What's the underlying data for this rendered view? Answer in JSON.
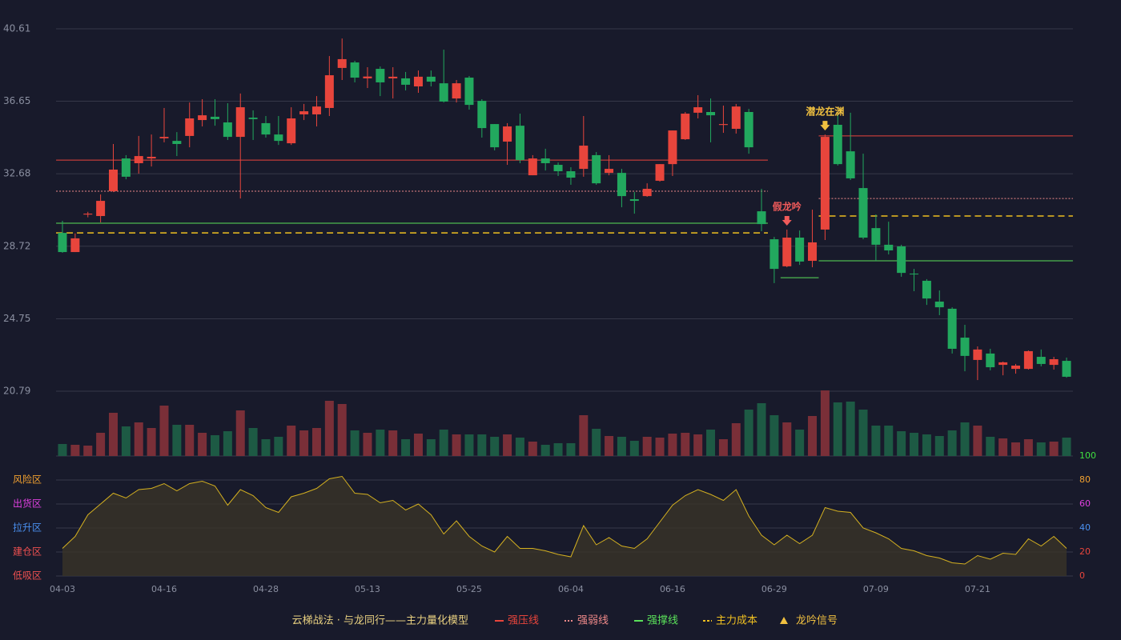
{
  "chart_data": {
    "type": "candlestick",
    "categories": [
      "04-03",
      null,
      null,
      null,
      null,
      null,
      null,
      null,
      "04-16",
      null,
      null,
      null,
      null,
      null,
      null,
      null,
      "04-28",
      null,
      null,
      null,
      null,
      null,
      null,
      null,
      "05-13",
      null,
      null,
      null,
      null,
      null,
      null,
      null,
      "05-25",
      null,
      null,
      null,
      null,
      null,
      null,
      null,
      "06-04",
      null,
      null,
      null,
      null,
      null,
      null,
      null,
      "06-16",
      null,
      null,
      null,
      null,
      null,
      null,
      null,
      "06-29",
      null,
      null,
      null,
      null,
      null,
      null,
      null,
      "07-09",
      null,
      null,
      null,
      null,
      null,
      null,
      null,
      "07-21",
      null,
      null,
      null,
      null,
      null,
      null,
      null
    ],
    "open": [
      29.45,
      28.4,
      30.45,
      30.37,
      31.73,
      33.52,
      33.26,
      33.52,
      34.62,
      34.48,
      34.75,
      35.62,
      35.8,
      35.49,
      34.7,
      35.75,
      35.45,
      34.83,
      34.35,
      35.93,
      35.93,
      36.28,
      38.47,
      38.77,
      37.9,
      38.42,
      37.9,
      37.9,
      37.46,
      37.99,
      37.63,
      36.8,
      37.94,
      36.67,
      35.4,
      34.44,
      35.31,
      32.6,
      33.52,
      33.17,
      32.82,
      32.95,
      33.7,
      32.73,
      32.73,
      31.29,
      31.46,
      32.3,
      33.21,
      34.57,
      36.02,
      36.06,
      35.35,
      35.14,
      36.06,
      30.63,
      29.1,
      27.62,
      29.19,
      27.92,
      29.63,
      35.36,
      33.91,
      31.9,
      29.71,
      28.8,
      28.71,
      27.22,
      26.83,
      25.69,
      25.3,
      23.72,
      22.5,
      22.85,
      22.23,
      22.01,
      22.01,
      22.67,
      22.23,
      22.45
    ],
    "high": [
      30.11,
      29.42,
      30.6,
      31.55,
      34.31,
      33.7,
      34.75,
      34.83,
      36.28,
      34.96,
      36.58,
      36.76,
      36.76,
      36.54,
      37.07,
      36.15,
      35.84,
      35.84,
      36.32,
      36.5,
      36.93,
      39.12,
      40.08,
      38.86,
      38.51,
      38.55,
      38.51,
      38.25,
      38.33,
      38.33,
      39.47,
      37.81,
      38.03,
      36.76,
      35.4,
      35.45,
      35.97,
      33.7,
      34.05,
      33.3,
      33.04,
      35.84,
      33.87,
      33.7,
      32.95,
      31.68,
      32.16,
      33.21,
      35.05,
      36.06,
      36.98,
      36.8,
      36.41,
      36.5,
      36.23,
      31.86,
      29.23,
      29.63,
      29.58,
      30.72,
      34.83,
      35.93,
      36.02,
      33.78,
      30.46,
      30.06,
      28.8,
      27.48,
      26.92,
      26.3,
      25.38,
      24.42,
      23.24,
      23.11,
      22.41,
      22.28,
      23.02,
      23.07,
      22.67,
      22.63
    ],
    "low": [
      28.36,
      28.4,
      30.3,
      30.02,
      31.68,
      32.38,
      32.69,
      33.08,
      34.4,
      33.65,
      34.13,
      35.27,
      35.31,
      34.53,
      31.33,
      34.53,
      34.66,
      34.26,
      34.26,
      35.62,
      35.27,
      35.84,
      37.81,
      37.68,
      37.37,
      36.93,
      36.8,
      37.24,
      37.11,
      37.46,
      36.58,
      36.58,
      36.19,
      34.66,
      33.96,
      33.17,
      33.26,
      32.6,
      32.86,
      32.56,
      32.08,
      32.52,
      32.08,
      32.6,
      30.85,
      30.5,
      31.42,
      32.25,
      32.56,
      34.53,
      35.71,
      34.4,
      34.92,
      34.88,
      33.78,
      29.54,
      26.7,
      27.57,
      27.7,
      27.57,
      29.06,
      33.13,
      32.34,
      29.1,
      27.92,
      28.27,
      27.05,
      26.26,
      25.51,
      24.95,
      22.85,
      21.88,
      21.4,
      21.93,
      21.66,
      21.75,
      21.97,
      22.15,
      21.97,
      21.53
    ],
    "close": [
      28.4,
      29.15,
      30.5,
      31.2,
      32.91,
      32.52,
      33.65,
      33.61,
      34.7,
      34.31,
      35.71,
      35.88,
      35.67,
      34.7,
      36.32,
      35.67,
      34.83,
      34.48,
      35.71,
      36.1,
      36.36,
      38.07,
      38.95,
      37.94,
      38.0,
      37.68,
      37.99,
      37.55,
      37.99,
      37.72,
      36.63,
      37.63,
      36.45,
      35.18,
      34.13,
      35.27,
      33.43,
      33.52,
      33.26,
      32.82,
      32.47,
      34.22,
      32.16,
      32.95,
      31.46,
      31.2,
      31.86,
      33.21,
      35.05,
      35.97,
      36.32,
      35.88,
      35.4,
      36.36,
      34.13,
      29.93,
      27.48,
      29.19,
      27.88,
      28.93,
      34.7,
      33.21,
      32.43,
      29.19,
      28.8,
      28.49,
      27.26,
      27.18,
      25.86,
      25.38,
      23.11,
      22.72,
      23.07,
      22.1,
      22.37,
      22.19,
      22.98,
      22.28,
      22.54,
      21.58
    ],
    "up_color": "#e8453c",
    "down_color": "#22a85e",
    "ylim": [
      20.79,
      40.61
    ],
    "yticks": [
      20.79,
      24.75,
      28.72,
      32.68,
      36.65,
      40.61
    ],
    "levels": [
      {
        "name": "强压线",
        "color": "#e8453c",
        "style": "solid",
        "values": [
          33.43,
          33.43,
          33.43,
          33.43,
          33.43,
          33.43,
          33.43,
          33.43,
          33.43,
          33.43,
          33.43,
          33.43,
          33.43,
          33.43,
          33.43,
          33.43,
          33.43,
          33.43,
          33.43,
          33.43,
          33.43,
          33.43,
          33.43,
          33.43,
          33.43,
          33.43,
          33.43,
          33.43,
          33.43,
          33.43,
          33.43,
          33.43,
          33.43,
          33.43,
          33.43,
          33.43,
          33.43,
          33.43,
          33.43,
          33.43,
          33.43,
          33.43,
          33.43,
          33.43,
          33.43,
          33.43,
          33.43,
          33.43,
          33.43,
          33.43,
          33.43,
          33.43,
          33.43,
          33.43,
          33.43,
          33.43,
          null,
          null,
          null,
          null,
          34.75,
          34.75,
          34.75,
          34.75,
          34.75,
          34.75,
          34.75,
          34.75,
          34.75,
          34.75,
          34.75,
          34.75,
          34.75,
          34.75,
          34.75,
          34.75,
          34.75,
          34.75,
          34.75,
          34.75
        ]
      },
      {
        "name": "强弱线",
        "color": "#f08a8a",
        "style": "dotted",
        "values": [
          31.73,
          31.73,
          31.73,
          31.73,
          31.73,
          31.73,
          31.73,
          31.73,
          31.73,
          31.73,
          31.73,
          31.73,
          31.73,
          31.73,
          31.73,
          31.73,
          31.73,
          31.73,
          31.73,
          31.73,
          31.73,
          31.73,
          31.73,
          31.73,
          31.73,
          31.73,
          31.73,
          31.73,
          31.73,
          31.73,
          31.73,
          31.73,
          31.73,
          31.73,
          31.73,
          31.73,
          31.73,
          31.73,
          31.73,
          31.73,
          31.73,
          31.73,
          31.73,
          31.73,
          31.73,
          31.73,
          31.73,
          31.73,
          31.73,
          31.73,
          31.73,
          31.73,
          31.73,
          31.73,
          31.73,
          31.73,
          null,
          null,
          null,
          null,
          31.33,
          31.33,
          31.33,
          31.33,
          31.33,
          31.33,
          31.33,
          31.33,
          31.33,
          31.33,
          31.33,
          31.33,
          31.33,
          31.33,
          31.33,
          31.33,
          31.33,
          31.33,
          31.33,
          31.33
        ]
      },
      {
        "name": "强撑线",
        "color": "#5ae05a",
        "style": "solid",
        "values": [
          29.98,
          29.98,
          29.98,
          29.98,
          29.98,
          29.98,
          29.98,
          29.98,
          29.98,
          29.98,
          29.98,
          29.98,
          29.98,
          29.98,
          29.98,
          29.98,
          29.98,
          29.98,
          29.98,
          29.98,
          29.98,
          29.98,
          29.98,
          29.98,
          29.98,
          29.98,
          29.98,
          29.98,
          29.98,
          29.98,
          29.98,
          29.98,
          29.98,
          29.98,
          29.98,
          29.98,
          29.98,
          29.98,
          29.98,
          29.98,
          29.98,
          29.98,
          29.98,
          29.98,
          29.98,
          29.98,
          29.98,
          29.98,
          29.98,
          29.98,
          29.98,
          29.98,
          29.98,
          29.98,
          29.98,
          29.98,
          null,
          27.0,
          27.0,
          27.0,
          27.92,
          27.92,
          27.92,
          27.92,
          27.92,
          27.92,
          27.92,
          27.92,
          27.92,
          27.92,
          27.92,
          27.92,
          27.92,
          27.92,
          27.92,
          27.92,
          27.92,
          27.92,
          27.92,
          27.92
        ]
      },
      {
        "name": "主力成本",
        "color": "#f0c020",
        "style": "dashed",
        "values": [
          29.45,
          29.45,
          29.45,
          29.45,
          29.45,
          29.45,
          29.45,
          29.45,
          29.45,
          29.45,
          29.45,
          29.45,
          29.45,
          29.45,
          29.45,
          29.45,
          29.45,
          29.45,
          29.45,
          29.45,
          29.45,
          29.45,
          29.45,
          29.45,
          29.45,
          29.45,
          29.45,
          29.45,
          29.45,
          29.45,
          29.45,
          29.45,
          29.45,
          29.45,
          29.45,
          29.45,
          29.45,
          29.45,
          29.45,
          29.45,
          29.45,
          29.45,
          29.45,
          29.45,
          29.45,
          29.45,
          29.45,
          29.45,
          29.45,
          29.45,
          29.45,
          29.45,
          29.45,
          29.45,
          29.45,
          29.45,
          null,
          null,
          null,
          null,
          30.37,
          30.37,
          30.37,
          30.37,
          30.37,
          30.37,
          30.37,
          30.37,
          30.37,
          30.37,
          30.37,
          30.37,
          30.37,
          30.37,
          30.37,
          30.37,
          30.37,
          30.37,
          30.37,
          30.37
        ]
      }
    ],
    "signal_labels": [
      null,
      null,
      null,
      null,
      null,
      null,
      null,
      null,
      null,
      null,
      null,
      null,
      null,
      null,
      null,
      null,
      null,
      null,
      null,
      null,
      null,
      null,
      null,
      null,
      null,
      null,
      null,
      null,
      null,
      null,
      null,
      null,
      null,
      null,
      null,
      null,
      null,
      null,
      null,
      null,
      null,
      null,
      null,
      null,
      null,
      null,
      null,
      null,
      null,
      null,
      null,
      null,
      null,
      null,
      null,
      null,
      null,
      "假龙吟",
      null,
      null,
      "潜龙在渊",
      null,
      null,
      null,
      null,
      null,
      null,
      null,
      null,
      null,
      null,
      null,
      null,
      null,
      null,
      null,
      null,
      null,
      null,
      null
    ],
    "signal_colors": [
      null,
      null,
      null,
      null,
      null,
      null,
      null,
      null,
      null,
      null,
      null,
      null,
      null,
      null,
      null,
      null,
      null,
      null,
      null,
      null,
      null,
      null,
      null,
      null,
      null,
      null,
      null,
      null,
      null,
      null,
      null,
      null,
      null,
      null,
      null,
      null,
      null,
      null,
      null,
      null,
      null,
      null,
      null,
      null,
      null,
      null,
      null,
      null,
      null,
      null,
      null,
      null,
      null,
      null,
      null,
      null,
      null,
      "#f05a5a",
      null,
      null,
      "#f0c040",
      null,
      null,
      null,
      null,
      null,
      null,
      null,
      null,
      null,
      null,
      null,
      null,
      null,
      null,
      null,
      null,
      null,
      null,
      null
    ],
    "signal_legend": "龙吟信号",
    "signal_legend_color": "#f0c040",
    "legend_title": "云梯战法 · 与龙同行——主力量化模型",
    "legend_title_color": "#e8d080",
    "volume": {
      "up_color": "#7a2f38",
      "down_color": "#1d5a44",
      "values": [
        15,
        14,
        13,
        29,
        54,
        37,
        42,
        35,
        63,
        39,
        39,
        29,
        26,
        31,
        57,
        35,
        21,
        24,
        38,
        32,
        35,
        69,
        65,
        32,
        29,
        33,
        32,
        21,
        28,
        21,
        33,
        27,
        27,
        27,
        24,
        27,
        23,
        18,
        14,
        16,
        16,
        51,
        34,
        25,
        24,
        19,
        24,
        23,
        28,
        29,
        27,
        33,
        21,
        41,
        58,
        66,
        51,
        42,
        33,
        50,
        82,
        67,
        68,
        58,
        38,
        38,
        31,
        29,
        27,
        25,
        32,
        42,
        38,
        24,
        22,
        17,
        21,
        17,
        18,
        23
      ]
    },
    "osc": {
      "color": "#d4b020",
      "fill": "#3a3328",
      "values": [
        23,
        33,
        51,
        60,
        69,
        65,
        72,
        73,
        77,
        71,
        77,
        79,
        75,
        59,
        72,
        67,
        57,
        53,
        66,
        69,
        73,
        81,
        83,
        69,
        68,
        61,
        63,
        55,
        60,
        51,
        35,
        46,
        33,
        25,
        20,
        33,
        23,
        23,
        21,
        18,
        16,
        42,
        26,
        32,
        25,
        23,
        31,
        45,
        59,
        67,
        72,
        68,
        63,
        72,
        50,
        34,
        26,
        34,
        27,
        34,
        57,
        54,
        53,
        40,
        36,
        31,
        23,
        21,
        17,
        15,
        11,
        10,
        17,
        14,
        19,
        18,
        31,
        25,
        33,
        23
      ],
      "ylim": [
        0,
        100
      ],
      "yticks": [
        0,
        20,
        40,
        60,
        80,
        100
      ],
      "tick_colors": [
        "#e8453c",
        "#e8453c",
        "#4a90f0",
        "#e040e0",
        "#f0a030",
        "#40e040"
      ],
      "zones": [
        {
          "value": 80,
          "label": "风险区",
          "color": "#f0a030"
        },
        {
          "value": 60,
          "label": "出货区",
          "color": "#e040e0"
        },
        {
          "value": 40,
          "label": "拉升区",
          "color": "#4a90f0"
        },
        {
          "value": 20,
          "label": "建仓区",
          "color": "#f05050"
        },
        {
          "value": 0,
          "label": "低吸区",
          "color": "#f05050"
        }
      ]
    }
  }
}
